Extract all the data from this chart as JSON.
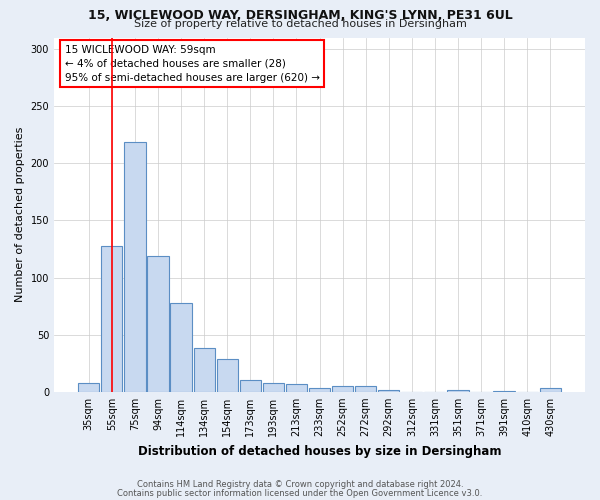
{
  "title1": "15, WICLEWOOD WAY, DERSINGHAM, KING'S LYNN, PE31 6UL",
  "title2": "Size of property relative to detached houses in Dersingham",
  "xlabel": "Distribution of detached houses by size in Dersingham",
  "ylabel": "Number of detached properties",
  "categories": [
    "35sqm",
    "55sqm",
    "75sqm",
    "94sqm",
    "114sqm",
    "134sqm",
    "154sqm",
    "173sqm",
    "193sqm",
    "213sqm",
    "233sqm",
    "252sqm",
    "272sqm",
    "292sqm",
    "312sqm",
    "331sqm",
    "351sqm",
    "371sqm",
    "391sqm",
    "410sqm",
    "430sqm"
  ],
  "values": [
    8,
    128,
    219,
    119,
    78,
    38,
    29,
    10,
    8,
    7,
    3,
    5,
    5,
    2,
    0,
    0,
    2,
    0,
    1,
    0,
    3
  ],
  "bar_color": "#c8d9f0",
  "bar_edge_color": "#5b8ec4",
  "red_line_x": 1.0,
  "annotation_text": "15 WICLEWOOD WAY: 59sqm\n← 4% of detached houses are smaller (28)\n95% of semi-detached houses are larger (620) →",
  "footer1": "Contains HM Land Registry data © Crown copyright and database right 2024.",
  "footer2": "Contains public sector information licensed under the Open Government Licence v3.0.",
  "ylim": [
    0,
    310
  ],
  "yticks": [
    0,
    50,
    100,
    150,
    200,
    250,
    300
  ],
  "bg_color": "#e8eef7",
  "plot_bg_color": "#ffffff",
  "title1_fontsize": 9,
  "title2_fontsize": 8,
  "xlabel_fontsize": 8.5,
  "ylabel_fontsize": 8,
  "tick_fontsize": 7,
  "footer_fontsize": 6,
  "annotation_fontsize": 7.5
}
